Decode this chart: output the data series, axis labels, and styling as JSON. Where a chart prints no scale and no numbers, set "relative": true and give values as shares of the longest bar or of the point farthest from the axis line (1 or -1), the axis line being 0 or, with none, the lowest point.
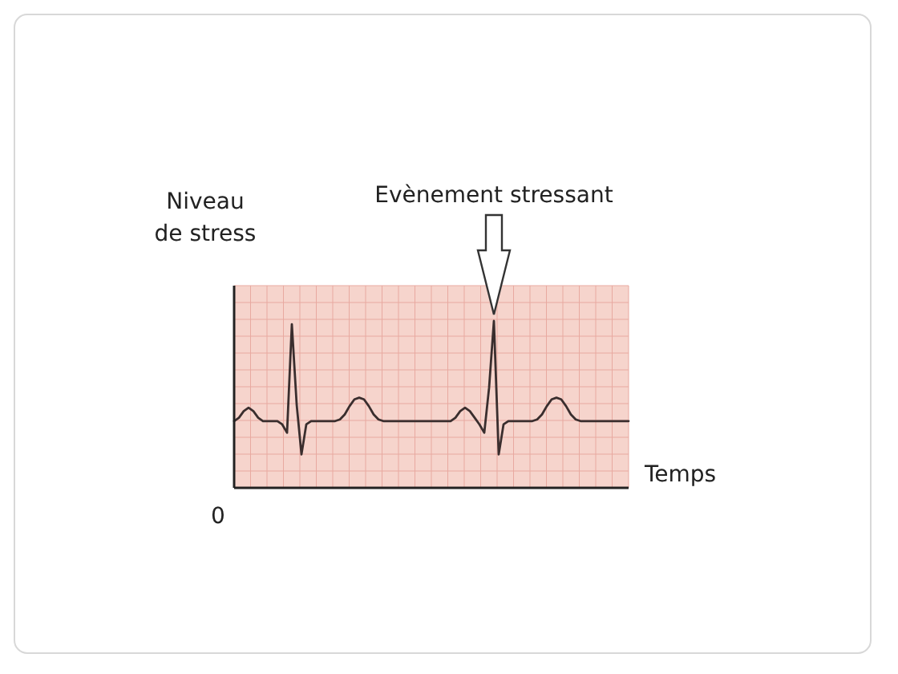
{
  "chart_data": {
    "type": "line",
    "relative": true,
    "xlabel": "Temps",
    "ylabel": "Niveau de stress",
    "grid": true,
    "line_style": "solid",
    "categories": [
      null,
      null,
      null,
      null,
      null,
      null,
      null,
      null,
      null,
      null,
      null,
      null,
      null,
      null,
      null,
      null,
      null,
      null,
      null,
      null,
      null,
      null,
      null,
      null,
      null,
      null,
      null,
      null,
      null,
      null,
      null,
      null,
      null,
      null,
      null,
      null,
      null,
      null,
      null,
      null,
      null,
      null,
      null,
      null,
      null,
      null,
      null,
      null,
      null,
      null,
      null,
      null,
      null,
      null,
      null,
      null,
      null,
      null,
      null,
      null,
      null,
      null,
      null,
      null,
      null,
      null,
      null,
      null,
      null,
      null,
      null,
      null,
      null,
      null,
      null,
      null,
      null,
      null,
      null,
      null,
      null,
      null,
      null
    ],
    "series": [
      {
        "color": "#3a2e2e",
        "values": [
          0.4,
          0.42,
          0.46,
          0.48,
          0.46,
          0.42,
          0.4,
          0.4,
          0.4,
          0.4,
          0.38,
          0.33,
          0.98,
          0.5,
          0.2,
          0.38,
          0.4,
          0.4,
          0.4,
          0.4,
          0.4,
          0.4,
          0.41,
          0.44,
          0.49,
          0.53,
          0.54,
          0.53,
          0.49,
          0.44,
          0.41,
          0.4,
          0.4,
          0.4,
          0.4,
          0.4,
          0.4,
          0.4,
          0.4,
          0.4,
          0.4,
          0.4,
          0.4,
          0.4,
          0.4,
          0.4,
          0.42,
          0.46,
          0.48,
          0.46,
          0.42,
          0.38,
          0.33,
          0.6,
          1,
          0.2,
          0.38,
          0.4,
          0.4,
          0.4,
          0.4,
          0.4,
          0.4,
          0.41,
          0.44,
          0.49,
          0.53,
          0.54,
          0.53,
          0.49,
          0.44,
          0.41,
          0.4,
          0.4,
          0.4,
          0.4,
          0.4,
          0.4,
          0.4,
          0.4,
          0.4,
          0.4,
          0.4
        ]
      }
    ],
    "annotations": [
      "Evènement stressant",
      "0"
    ]
  }
}
